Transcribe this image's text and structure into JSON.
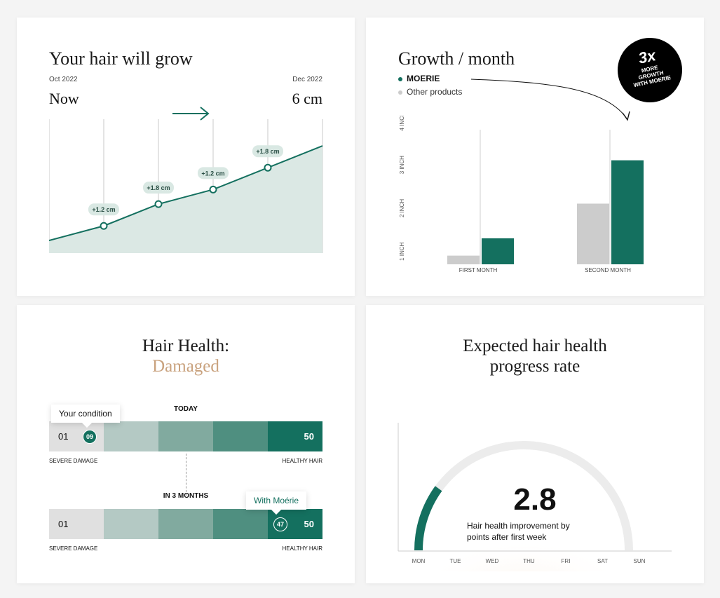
{
  "colors": {
    "primary": "#14705f",
    "fill": "#dbe8e4",
    "gray": "#cccccc",
    "tan": "#c9a27e"
  },
  "growth_card": {
    "title": "Your hair will grow",
    "start_date": "Oct 2022",
    "end_date": "Dec 2022",
    "start_label": "Now",
    "end_value": "6 cm",
    "arrow_icon": "arrow-right-icon"
  },
  "month_card": {
    "title": "Growth / month",
    "badge": {
      "big": "3x",
      "line1": "MORE",
      "line2": "GROWTH",
      "line3": "WITH MOERIE"
    }
  },
  "health_card": {
    "title": "Hair Health:",
    "status": "Damaged",
    "today_label": "TODAY",
    "months_label": "IN 3 MONTHS",
    "your_condition": "Your condition",
    "with_moerie": "With Moérie",
    "bar_start": "01",
    "bar_end": "50",
    "current_value": "09",
    "future_value": "47",
    "left_caption": "SEVERE DAMAGE",
    "right_caption": "HEALTHY HAIR"
  },
  "progress_card": {
    "title_line1": "Expected hair health",
    "title_line2": "progress rate",
    "value": "2.8",
    "caption_line1": "Hair health improvement by",
    "caption_line2": "points after first week",
    "days": [
      "MON",
      "TUE",
      "WED",
      "THU",
      "FRI",
      "SAT",
      "SUN"
    ],
    "progress_fraction": 0.2
  },
  "chart_data": [
    {
      "type": "area",
      "title": "Your hair will grow",
      "x": [
        "Oct 2022",
        "",
        "",
        "",
        "",
        "Dec 2022"
      ],
      "y": [
        0,
        1.2,
        3.0,
        4.2,
        6.0,
        7.8
      ],
      "annotations": [
        "+1.2 cm",
        "+1.8 cm",
        "+1.2 cm",
        "+1.8 cm"
      ],
      "grid": true
    },
    {
      "type": "bar",
      "title": "Growth / month",
      "categories": [
        "FIRST MONTH",
        "SECOND MONTH"
      ],
      "series": [
        {
          "name": "Other products",
          "values": [
            1.1,
            2.3
          ]
        },
        {
          "name": "MOERIE",
          "values": [
            1.5,
            3.3
          ]
        }
      ],
      "yticks": [
        "1 INCH",
        "2 INCH",
        "3 INCH",
        "4 INCH"
      ],
      "ylim": [
        0.9,
        4.2
      ],
      "legend": "top-left"
    }
  ]
}
